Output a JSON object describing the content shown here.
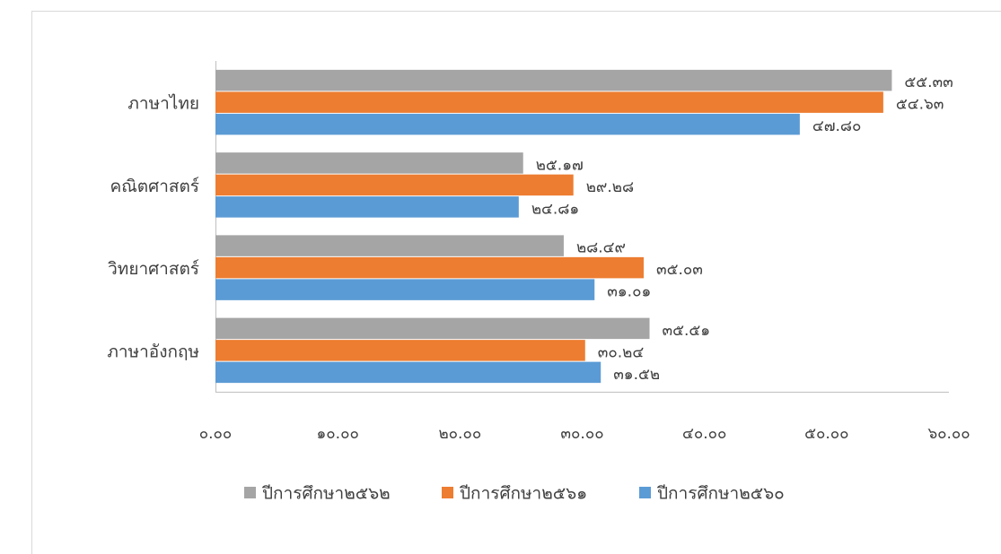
{
  "chart_data": {
    "type": "bar",
    "orientation": "horizontal",
    "categories": [
      "ภาษาไทย",
      "คณิตศาสตร์",
      "วิทยาศาสตร์",
      "ภาษาอังกฤษ"
    ],
    "series": [
      {
        "name": "ปีการศึกษา๒๕๖๒",
        "color": "#a5a5a5",
        "values": [
          55.33,
          25.17,
          28.49,
          35.51
        ],
        "value_labels": [
          "๕๕.๓๓",
          "๒๕.๑๗",
          "๒๘.๔๙",
          "๓๕.๕๑"
        ]
      },
      {
        "name": "ปีการศึกษา๒๕๖๑",
        "color": "#ed7d31",
        "values": [
          54.63,
          29.28,
          35.03,
          30.24
        ],
        "value_labels": [
          "๕๔.๖๓",
          "๒๙.๒๘",
          "๓๕.๐๓",
          "๓๐.๒๔"
        ]
      },
      {
        "name": "ปีการศึกษา๒๕๖๐",
        "color": "#5b9bd5",
        "values": [
          47.8,
          24.81,
          31.01,
          31.52
        ],
        "value_labels": [
          "๔๗.๘๐",
          "๒๔.๘๑",
          "๓๑.๐๑",
          "๓๑.๕๒"
        ]
      }
    ],
    "xlim": [
      0,
      60
    ],
    "xticks": [
      {
        "value": 0,
        "label": "๐.๐๐"
      },
      {
        "value": 10,
        "label": "๑๐.๐๐"
      },
      {
        "value": 20,
        "label": "๒๐.๐๐"
      },
      {
        "value": 30,
        "label": "๓๐.๐๐"
      },
      {
        "value": 40,
        "label": "๔๐.๐๐"
      },
      {
        "value": 50,
        "label": "๕๐.๐๐"
      },
      {
        "value": 60,
        "label": "๖๐.๐๐"
      }
    ],
    "grid": false,
    "legend": "bottom"
  }
}
